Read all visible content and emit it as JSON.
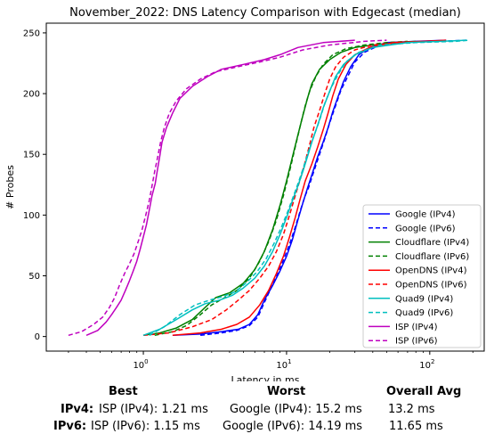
{
  "chart_data": {
    "type": "line",
    "title": "November_2022: DNS Latency Comparison with Edgecast (median)",
    "xlabel": "Latency in ms",
    "ylabel": "# Probes",
    "xscale": "log",
    "xlim": [
      0.21,
      240
    ],
    "ylim": [
      -12,
      258
    ],
    "x_ticks": [
      {
        "value": 1,
        "label": "10^0"
      },
      {
        "value": 10,
        "label": "10^1"
      },
      {
        "value": 100,
        "label": "10^2"
      }
    ],
    "y_ticks": [
      0,
      50,
      100,
      150,
      200,
      250
    ],
    "legend_position": "lower-right",
    "grid": false,
    "series": [
      {
        "name": "Google (IPv4)",
        "color": "#0000ff",
        "dash": false,
        "points": [
          [
            1.6,
            1
          ],
          [
            2.5,
            2
          ],
          [
            3.5,
            4
          ],
          [
            4.6,
            6
          ],
          [
            5.5,
            10
          ],
          [
            6.3,
            18
          ],
          [
            7.0,
            30
          ],
          [
            8.0,
            42
          ],
          [
            9.0,
            54
          ],
          [
            10.0,
            66
          ],
          [
            11.0,
            80
          ],
          [
            12.0,
            96
          ],
          [
            13.0,
            110
          ],
          [
            14.0,
            122
          ],
          [
            15.2,
            135
          ],
          [
            16.5,
            148
          ],
          [
            18.0,
            160
          ],
          [
            19.5,
            172
          ],
          [
            21.0,
            185
          ],
          [
            23.0,
            198
          ],
          [
            25.0,
            210
          ],
          [
            28.0,
            222
          ],
          [
            32.0,
            232
          ],
          [
            38.0,
            238
          ],
          [
            50.0,
            242
          ],
          [
            80.0,
            243
          ],
          [
            130.0,
            244
          ]
        ]
      },
      {
        "name": "Google (IPv6)",
        "color": "#0000ff",
        "dash": true,
        "points": [
          [
            2.5,
            1
          ],
          [
            3.5,
            3
          ],
          [
            4.5,
            5
          ],
          [
            5.5,
            9
          ],
          [
            6.3,
            16
          ],
          [
            7.0,
            28
          ],
          [
            7.8,
            40
          ],
          [
            8.7,
            52
          ],
          [
            9.5,
            63
          ],
          [
            10.5,
            76
          ],
          [
            11.5,
            90
          ],
          [
            12.5,
            104
          ],
          [
            13.5,
            116
          ],
          [
            14.19,
            122
          ],
          [
            15.5,
            136
          ],
          [
            17.0,
            150
          ],
          [
            18.5,
            163
          ],
          [
            20.0,
            176
          ],
          [
            22.0,
            190
          ],
          [
            24.0,
            203
          ],
          [
            27.0,
            215
          ],
          [
            30.0,
            226
          ],
          [
            35.0,
            234
          ],
          [
            45.0,
            240
          ],
          [
            70.0,
            242
          ],
          [
            120.0,
            243
          ],
          [
            180.0,
            244
          ]
        ]
      },
      {
        "name": "Cloudflare (IPv4)",
        "color": "#008000",
        "dash": false,
        "points": [
          [
            1.0,
            1
          ],
          [
            1.3,
            3
          ],
          [
            1.7,
            7
          ],
          [
            2.2,
            14
          ],
          [
            2.7,
            24
          ],
          [
            3.2,
            32
          ],
          [
            4.0,
            36
          ],
          [
            5.0,
            44
          ],
          [
            6.0,
            55
          ],
          [
            7.0,
            70
          ],
          [
            8.0,
            88
          ],
          [
            9.0,
            108
          ],
          [
            10.0,
            128
          ],
          [
            11.0,
            148
          ],
          [
            12.0,
            166
          ],
          [
            13.0,
            182
          ],
          [
            14.0,
            196
          ],
          [
            15.0,
            208
          ],
          [
            17.0,
            220
          ],
          [
            20.0,
            228
          ],
          [
            24.0,
            234
          ],
          [
            30.0,
            238
          ],
          [
            40.0,
            240
          ],
          [
            60.0,
            242
          ],
          [
            80.0,
            243
          ]
        ]
      },
      {
        "name": "Cloudflare (IPv6)",
        "color": "#008000",
        "dash": true,
        "points": [
          [
            1.2,
            1
          ],
          [
            1.6,
            4
          ],
          [
            2.0,
            9
          ],
          [
            2.5,
            18
          ],
          [
            3.0,
            26
          ],
          [
            3.7,
            32
          ],
          [
            4.5,
            38
          ],
          [
            5.5,
            48
          ],
          [
            6.5,
            62
          ],
          [
            7.5,
            78
          ],
          [
            8.5,
            96
          ],
          [
            9.5,
            116
          ],
          [
            10.5,
            136
          ],
          [
            11.5,
            156
          ],
          [
            12.5,
            174
          ],
          [
            13.5,
            190
          ],
          [
            14.5,
            202
          ],
          [
            16.0,
            214
          ],
          [
            18.0,
            224
          ],
          [
            21.0,
            232
          ],
          [
            26.0,
            237
          ],
          [
            35.0,
            240
          ],
          [
            50.0,
            242
          ],
          [
            70.0,
            243
          ]
        ]
      },
      {
        "name": "OpenDNS (IPv4)",
        "color": "#ff0000",
        "dash": false,
        "points": [
          [
            1.6,
            1
          ],
          [
            2.5,
            3
          ],
          [
            3.5,
            6
          ],
          [
            4.5,
            10
          ],
          [
            5.5,
            16
          ],
          [
            6.5,
            26
          ],
          [
            7.5,
            38
          ],
          [
            8.5,
            52
          ],
          [
            9.5,
            66
          ],
          [
            10.5,
            82
          ],
          [
            11.5,
            98
          ],
          [
            12.5,
            114
          ],
          [
            13.5,
            128
          ],
          [
            15.0,
            142
          ],
          [
            16.5,
            156
          ],
          [
            18.0,
            170
          ],
          [
            19.5,
            184
          ],
          [
            21.0,
            198
          ],
          [
            23.0,
            212
          ],
          [
            26.0,
            224
          ],
          [
            30.0,
            232
          ],
          [
            38.0,
            238
          ],
          [
            55.0,
            242
          ],
          [
            90.0,
            243
          ],
          [
            130.0,
            244
          ]
        ]
      },
      {
        "name": "OpenDNS (IPv6)",
        "color": "#ff0000",
        "dash": true,
        "points": [
          [
            1.0,
            1
          ],
          [
            1.5,
            3
          ],
          [
            2.2,
            8
          ],
          [
            3.0,
            14
          ],
          [
            3.8,
            22
          ],
          [
            4.6,
            30
          ],
          [
            5.5,
            38
          ],
          [
            6.5,
            48
          ],
          [
            7.5,
            58
          ],
          [
            8.5,
            70
          ],
          [
            9.5,
            84
          ],
          [
            10.5,
            100
          ],
          [
            11.5,
            116
          ],
          [
            12.5,
            130
          ],
          [
            13.5,
            144
          ],
          [
            14.5,
            158
          ],
          [
            15.5,
            172
          ],
          [
            17.0,
            186
          ],
          [
            18.5,
            200
          ],
          [
            20.0,
            212
          ],
          [
            22.0,
            222
          ],
          [
            25.0,
            230
          ],
          [
            30.0,
            236
          ],
          [
            40.0,
            240
          ],
          [
            60.0,
            242
          ],
          [
            90.0,
            243
          ]
        ]
      },
      {
        "name": "Quad9 (IPv4)",
        "color": "#00bfbf",
        "dash": false,
        "points": [
          [
            1.0,
            1
          ],
          [
            1.3,
            6
          ],
          [
            1.7,
            14
          ],
          [
            2.2,
            22
          ],
          [
            2.7,
            27
          ],
          [
            3.4,
            30
          ],
          [
            4.2,
            34
          ],
          [
            5.0,
            40
          ],
          [
            6.0,
            48
          ],
          [
            7.0,
            58
          ],
          [
            8.0,
            70
          ],
          [
            9.0,
            84
          ],
          [
            10.0,
            98
          ],
          [
            11.0,
            112
          ],
          [
            12.0,
            124
          ],
          [
            13.0,
            136
          ],
          [
            14.0,
            148
          ],
          [
            15.0,
            160
          ],
          [
            16.5,
            174
          ],
          [
            18.0,
            188
          ],
          [
            20.0,
            202
          ],
          [
            22.0,
            214
          ],
          [
            25.0,
            224
          ],
          [
            30.0,
            232
          ],
          [
            40.0,
            238
          ],
          [
            70.0,
            242
          ],
          [
            120.0,
            243
          ],
          [
            180.0,
            244
          ]
        ]
      },
      {
        "name": "Quad9 (IPv6)",
        "color": "#00bfbf",
        "dash": true,
        "points": [
          [
            1.1,
            1
          ],
          [
            1.4,
            8
          ],
          [
            1.8,
            18
          ],
          [
            2.3,
            26
          ],
          [
            2.9,
            30
          ],
          [
            3.6,
            33
          ],
          [
            4.4,
            37
          ],
          [
            5.2,
            44
          ],
          [
            6.2,
            53
          ],
          [
            7.2,
            64
          ],
          [
            8.2,
            77
          ],
          [
            9.2,
            90
          ],
          [
            10.2,
            103
          ],
          [
            11.2,
            116
          ],
          [
            12.2,
            128
          ],
          [
            13.2,
            140
          ],
          [
            14.2,
            152
          ],
          [
            15.5,
            165
          ],
          [
            17.0,
            178
          ],
          [
            18.5,
            192
          ],
          [
            20.5,
            205
          ],
          [
            23.0,
            216
          ],
          [
            26.0,
            226
          ],
          [
            32.0,
            234
          ],
          [
            45.0,
            240
          ],
          [
            80.0,
            242
          ],
          [
            150.0,
            243
          ],
          [
            190.0,
            244
          ]
        ]
      },
      {
        "name": "ISP (IPv4)",
        "color": "#bf00bf",
        "dash": false,
        "points": [
          [
            0.4,
            1
          ],
          [
            0.48,
            5
          ],
          [
            0.55,
            12
          ],
          [
            0.6,
            18
          ],
          [
            0.65,
            24
          ],
          [
            0.7,
            30
          ],
          [
            0.75,
            38
          ],
          [
            0.8,
            46
          ],
          [
            0.85,
            54
          ],
          [
            0.9,
            62
          ],
          [
            0.95,
            72
          ],
          [
            1.0,
            82
          ],
          [
            1.05,
            92
          ],
          [
            1.1,
            104
          ],
          [
            1.15,
            116
          ],
          [
            1.21,
            126
          ],
          [
            1.25,
            136
          ],
          [
            1.3,
            148
          ],
          [
            1.35,
            160
          ],
          [
            1.45,
            172
          ],
          [
            1.6,
            184
          ],
          [
            1.8,
            196
          ],
          [
            2.2,
            206
          ],
          [
            2.8,
            214
          ],
          [
            3.5,
            220
          ],
          [
            5.0,
            224
          ],
          [
            7.0,
            228
          ],
          [
            9.0,
            232
          ],
          [
            12.0,
            238
          ],
          [
            18.0,
            242
          ],
          [
            30.0,
            244
          ]
        ]
      },
      {
        "name": "ISP (IPv6)",
        "color": "#bf00bf",
        "dash": true,
        "points": [
          [
            0.3,
            1
          ],
          [
            0.37,
            4
          ],
          [
            0.45,
            10
          ],
          [
            0.52,
            16
          ],
          [
            0.58,
            24
          ],
          [
            0.63,
            32
          ],
          [
            0.68,
            42
          ],
          [
            0.74,
            52
          ],
          [
            0.8,
            60
          ],
          [
            0.86,
            68
          ],
          [
            0.92,
            78
          ],
          [
            0.98,
            88
          ],
          [
            1.04,
            100
          ],
          [
            1.1,
            112
          ],
          [
            1.15,
            124
          ],
          [
            1.2,
            136
          ],
          [
            1.26,
            148
          ],
          [
            1.32,
            160
          ],
          [
            1.4,
            172
          ],
          [
            1.52,
            184
          ],
          [
            1.7,
            194
          ],
          [
            2.0,
            204
          ],
          [
            2.5,
            212
          ],
          [
            3.2,
            218
          ],
          [
            4.5,
            222
          ],
          [
            6.5,
            226
          ],
          [
            9.0,
            230
          ],
          [
            13.0,
            236
          ],
          [
            20.0,
            240
          ],
          [
            35.0,
            243
          ],
          [
            50.0,
            244
          ]
        ]
      }
    ]
  },
  "summary": {
    "headers": {
      "best": "Best",
      "worst": "Worst",
      "avg": "Overall Avg"
    },
    "rows": [
      {
        "label": "IPv4:",
        "best": "ISP (IPv4): 1.21 ms",
        "worst": "Google (IPv4): 15.2 ms",
        "avg": "13.2 ms"
      },
      {
        "label": "IPv6:",
        "best": "ISP (IPv6): 1.15 ms",
        "worst": "Google (IPv6): 14.19 ms",
        "avg": "11.65 ms"
      }
    ]
  }
}
